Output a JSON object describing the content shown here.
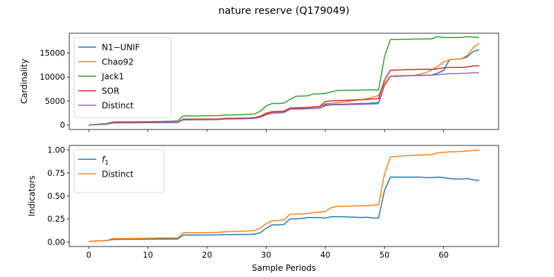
{
  "figure": {
    "title": "nature reserve (Q179049)"
  },
  "chart_data": [
    {
      "type": "line",
      "ylabel": "Cardinality",
      "xlabel": "",
      "xlim": [
        -3.3,
        69.3
      ],
      "ylim": [
        -900,
        19100
      ],
      "x_ticks": [
        0,
        10,
        20,
        30,
        40,
        50,
        60
      ],
      "y_ticks": [
        0,
        5000,
        10000,
        15000
      ],
      "y_tick_labels": [
        "0",
        "5000",
        "10000",
        "15000"
      ],
      "show_x_tick_labels": false,
      "grid": false,
      "legend": "upper-left",
      "x": [
        0,
        1,
        2,
        3,
        4,
        5,
        6,
        7,
        8,
        9,
        10,
        11,
        12,
        13,
        14,
        15,
        16,
        17,
        18,
        19,
        20,
        21,
        22,
        23,
        24,
        25,
        26,
        27,
        28,
        29,
        30,
        31,
        32,
        33,
        34,
        35,
        36,
        37,
        38,
        39,
        40,
        41,
        42,
        43,
        44,
        45,
        46,
        47,
        48,
        49,
        50,
        51,
        52,
        53,
        54,
        55,
        56,
        57,
        58,
        59,
        60,
        61,
        62,
        63,
        64,
        65,
        66
      ],
      "series": [
        {
          "name": "N1−UNIF",
          "color": "#1f77b4",
          "values": [
            0,
            100,
            150,
            200,
            450,
            500,
            500,
            500,
            500,
            520,
            520,
            540,
            550,
            560,
            560,
            560,
            1150,
            1150,
            1150,
            1160,
            1160,
            1170,
            1190,
            1300,
            1330,
            1340,
            1350,
            1380,
            1450,
            1700,
            2200,
            2500,
            2550,
            2650,
            3300,
            3400,
            3400,
            3450,
            3500,
            3550,
            4250,
            4300,
            4350,
            4350,
            4400,
            4450,
            4500,
            4500,
            4600,
            4700,
            8400,
            10200,
            10250,
            10280,
            10300,
            10300,
            10350,
            10400,
            10400,
            10800,
            11400,
            13600,
            13700,
            13800,
            14200,
            15300,
            15700
          ]
        },
        {
          "name": "Chao92",
          "color": "#ff7f0e",
          "values": [
            0,
            110,
            160,
            210,
            480,
            520,
            520,
            520,
            530,
            540,
            540,
            560,
            570,
            580,
            580,
            580,
            1200,
            1200,
            1200,
            1210,
            1220,
            1230,
            1260,
            1400,
            1430,
            1450,
            1460,
            1500,
            1600,
            1900,
            2500,
            2700,
            2750,
            2900,
            3550,
            3600,
            3650,
            3700,
            3800,
            3900,
            4450,
            4550,
            4700,
            4800,
            5000,
            5150,
            5300,
            5500,
            5800,
            6200,
            8700,
            10200,
            10250,
            10280,
            10300,
            10300,
            10600,
            10900,
            11500,
            12200,
            13100,
            13600,
            13700,
            13800,
            14500,
            16100,
            17000
          ]
        },
        {
          "name": "Jack1",
          "color": "#2ca02c",
          "values": [
            0,
            150,
            250,
            320,
            650,
            680,
            680,
            680,
            700,
            720,
            720,
            750,
            760,
            800,
            830,
            900,
            1900,
            1900,
            1900,
            1920,
            1950,
            1980,
            2000,
            2100,
            2130,
            2150,
            2200,
            2250,
            2300,
            2900,
            4000,
            4500,
            4500,
            4600,
            5300,
            6000,
            6050,
            6100,
            6500,
            6500,
            6600,
            6900,
            7200,
            7250,
            7250,
            7250,
            7300,
            7300,
            7350,
            7300,
            14200,
            17800,
            17800,
            17850,
            17850,
            17900,
            17900,
            17900,
            17950,
            18400,
            18200,
            18200,
            18200,
            18200,
            18400,
            18300,
            18200
          ]
        },
        {
          "name": "SOR",
          "color": "#d62728",
          "values": [
            0,
            120,
            170,
            220,
            500,
            550,
            550,
            550,
            560,
            570,
            580,
            600,
            610,
            620,
            620,
            620,
            1250,
            1250,
            1250,
            1260,
            1270,
            1280,
            1300,
            1400,
            1420,
            1440,
            1450,
            1480,
            1550,
            1800,
            2450,
            2800,
            2850,
            2900,
            3550,
            3600,
            3600,
            3700,
            3800,
            3850,
            4900,
            5050,
            5100,
            5150,
            5200,
            5250,
            5300,
            5350,
            5450,
            5500,
            9400,
            11400,
            11450,
            11500,
            11550,
            11550,
            11600,
            11600,
            11600,
            11700,
            11900,
            12000,
            12000,
            12000,
            12100,
            12300,
            12350
          ]
        },
        {
          "name": "Distinct",
          "color": "#9467bd",
          "values": [
            0,
            100,
            140,
            190,
            430,
            470,
            470,
            470,
            480,
            490,
            500,
            520,
            530,
            540,
            540,
            540,
            1100,
            1100,
            1100,
            1110,
            1120,
            1130,
            1150,
            1250,
            1280,
            1300,
            1310,
            1340,
            1400,
            1650,
            2150,
            2500,
            2550,
            2600,
            3300,
            3350,
            3350,
            3400,
            3450,
            3500,
            4050,
            4200,
            4250,
            4250,
            4280,
            4300,
            4320,
            4350,
            4400,
            4450,
            8200,
            10100,
            10150,
            10200,
            10250,
            10300,
            10300,
            10350,
            10350,
            10500,
            10600,
            10700,
            10700,
            10750,
            10800,
            10900,
            10900
          ]
        }
      ]
    },
    {
      "type": "line",
      "ylabel": "Indicators",
      "xlabel": "Sample Periods",
      "xlim": [
        -3.3,
        69.3
      ],
      "ylim": [
        -0.05,
        1.05
      ],
      "x_ticks": [
        0,
        10,
        20,
        30,
        40,
        50,
        60
      ],
      "x_tick_labels": [
        "0",
        "10",
        "20",
        "30",
        "40",
        "50",
        "60"
      ],
      "y_ticks": [
        0,
        0.25,
        0.5,
        0.75,
        1.0
      ],
      "y_tick_labels": [
        "0.00",
        "0.25",
        "0.50",
        "0.75",
        "1.00"
      ],
      "grid": false,
      "legend": "upper-left",
      "x": [
        0,
        1,
        2,
        3,
        4,
        5,
        6,
        7,
        8,
        9,
        10,
        11,
        12,
        13,
        14,
        15,
        16,
        17,
        18,
        19,
        20,
        21,
        22,
        23,
        24,
        25,
        26,
        27,
        28,
        29,
        30,
        31,
        32,
        33,
        34,
        35,
        36,
        37,
        38,
        39,
        40,
        41,
        42,
        43,
        44,
        45,
        46,
        47,
        48,
        49,
        50,
        51,
        52,
        53,
        54,
        55,
        56,
        57,
        58,
        59,
        60,
        61,
        62,
        63,
        64,
        65,
        66
      ],
      "series": [
        {
          "name": "f_1",
          "name_base": "f",
          "name_sub": "1",
          "color": "#1f77b4",
          "values": [
            0.005,
            0.01,
            0.012,
            0.015,
            0.025,
            0.028,
            0.028,
            0.028,
            0.029,
            0.029,
            0.03,
            0.03,
            0.031,
            0.031,
            0.031,
            0.031,
            0.075,
            0.075,
            0.075,
            0.075,
            0.075,
            0.076,
            0.077,
            0.08,
            0.08,
            0.081,
            0.081,
            0.082,
            0.085,
            0.1,
            0.15,
            0.185,
            0.185,
            0.19,
            0.25,
            0.252,
            0.255,
            0.265,
            0.265,
            0.265,
            0.26,
            0.275,
            0.275,
            0.275,
            0.27,
            0.27,
            0.265,
            0.27,
            0.26,
            0.26,
            0.56,
            0.705,
            0.705,
            0.705,
            0.705,
            0.705,
            0.705,
            0.7,
            0.7,
            0.705,
            0.7,
            0.69,
            0.685,
            0.685,
            0.69,
            0.675,
            0.67
          ]
        },
        {
          "name": "Distinct",
          "color": "#ff7f0e",
          "values": [
            0.005,
            0.01,
            0.012,
            0.015,
            0.035,
            0.037,
            0.037,
            0.038,
            0.039,
            0.039,
            0.04,
            0.041,
            0.042,
            0.043,
            0.043,
            0.043,
            0.1,
            0.1,
            0.1,
            0.101,
            0.102,
            0.103,
            0.105,
            0.11,
            0.112,
            0.115,
            0.118,
            0.12,
            0.125,
            0.15,
            0.2,
            0.23,
            0.233,
            0.24,
            0.3,
            0.303,
            0.305,
            0.31,
            0.32,
            0.325,
            0.33,
            0.375,
            0.385,
            0.388,
            0.39,
            0.392,
            0.393,
            0.395,
            0.4,
            0.405,
            0.74,
            0.925,
            0.93,
            0.935,
            0.94,
            0.943,
            0.945,
            0.948,
            0.95,
            0.97,
            0.975,
            0.98,
            0.98,
            0.985,
            0.99,
            0.995,
            1.0
          ]
        }
      ]
    }
  ]
}
